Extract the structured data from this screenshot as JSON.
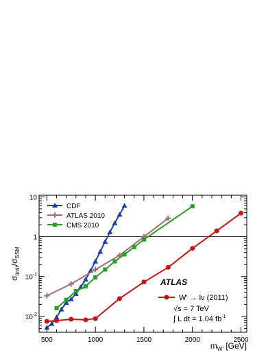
{
  "chart_data": {
    "type": "line",
    "title": "",
    "xlabel": "m",
    "xlabel_sub": "W'",
    "xlabel_unit": " [GeV]",
    "ylabel_parts": [
      {
        "text": "σ",
        "sub": "limit"
      },
      {
        "text": "/σ",
        "sub": "SSM"
      }
    ],
    "xlim": [
      420,
      2560
    ],
    "ylim": [
      0.004,
      11
    ],
    "yscale": "log",
    "x_ticks": [
      500,
      1000,
      1500,
      2000,
      2500
    ],
    "y_ticks": [
      {
        "value": 0.01,
        "base": "10",
        "exp": "-2"
      },
      {
        "value": 0.1,
        "base": "10",
        "exp": "-1"
      },
      {
        "value": 1,
        "label": "1"
      },
      {
        "value": 10,
        "label": "10"
      }
    ],
    "reference_line": {
      "y": 1
    },
    "series": [
      {
        "name": "CDF",
        "color": "#1f3fa8",
        "marker": "triangle",
        "x": [
          500,
          550,
          600,
          650,
          700,
          750,
          800,
          850,
          900,
          950,
          1000,
          1050,
          1100,
          1150,
          1200,
          1250,
          1300
        ],
        "y": [
          0.0052,
          0.0065,
          0.0095,
          0.015,
          0.022,
          0.027,
          0.037,
          0.055,
          0.085,
          0.14,
          0.24,
          0.42,
          0.75,
          1.3,
          2.2,
          3.6,
          6.0
        ]
      },
      {
        "name": "ATLAS 2010",
        "color": "#a07070",
        "marker": "plus",
        "x": [
          500,
          750,
          1000,
          1250,
          1500,
          1750
        ],
        "y": [
          0.033,
          0.065,
          0.15,
          0.34,
          1.0,
          2.9
        ]
      },
      {
        "name": "CMS 2010",
        "color": "#22a022",
        "marker": "square",
        "x": [
          600,
          700,
          800,
          900,
          1000,
          1100,
          1200,
          1300,
          1400,
          1500,
          2000
        ],
        "y": [
          0.016,
          0.026,
          0.043,
          0.057,
          0.095,
          0.15,
          0.24,
          0.36,
          0.55,
          0.85,
          5.8
        ]
      },
      {
        "name": "W' → lν (2011)",
        "color": "#cc1111",
        "marker": "circle",
        "x": [
          500,
          600,
          750,
          900,
          1000,
          1250,
          1500,
          1750,
          2000,
          2250,
          2500
        ],
        "y": [
          0.0075,
          0.0078,
          0.0085,
          0.0082,
          0.0088,
          0.028,
          0.073,
          0.17,
          0.51,
          1.4,
          3.9
        ]
      }
    ],
    "legend_placement": "top-left",
    "annotation": {
      "experiment": "ATLAS",
      "energy": "√s = 7 TeV",
      "lumi_prefix": "∫ L dt = 1.04 fb",
      "lumi_exp": "-1"
    }
  }
}
